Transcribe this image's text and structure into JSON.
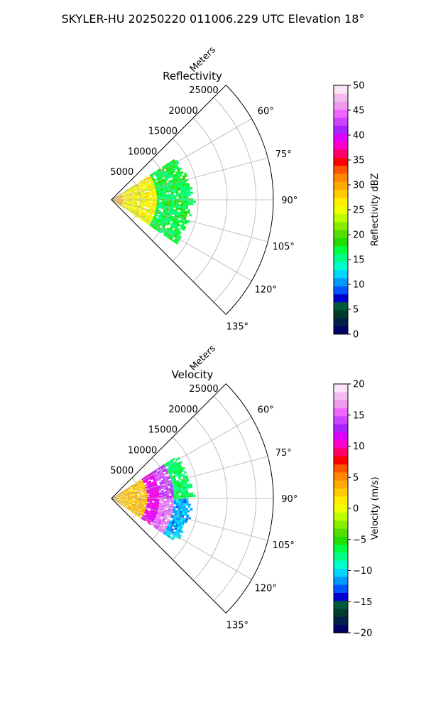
{
  "figure": {
    "title": "SKYLER-HU  20250220  011006.229 UTC Elevation 18°"
  },
  "chart_data": [
    {
      "type": "polar-sector",
      "title": "Reflectivity",
      "radial_label": "Meters",
      "radial_ticks": [
        5000,
        10000,
        15000,
        20000,
        25000
      ],
      "radial_tick_labels": [
        "5000",
        "10000",
        "15000",
        "20000",
        "25000"
      ],
      "rmax": 28000,
      "angle_range_deg": [
        45,
        135
      ],
      "angle_ticks_deg": [
        60,
        75,
        90,
        105,
        120,
        135
      ],
      "angle_tick_labels": [
        "60°",
        "75°",
        "90°",
        "105°",
        "120°",
        "135°"
      ],
      "grid": true,
      "data_extent": {
        "range_m": [
          0,
          14000
        ],
        "azimuth_deg": [
          57,
          123
        ]
      },
      "pattern": {
        "near_range_m": 7500,
        "near_value": 26,
        "far_value": 17,
        "spread": 4
      },
      "colorbar": {
        "label": "Reflectivity dBZ",
        "min": 0,
        "max": 50,
        "ticks": [
          0,
          5,
          10,
          15,
          20,
          25,
          30,
          35,
          40,
          45,
          50
        ],
        "tick_labels": [
          "0",
          "5",
          "10",
          "15",
          "20",
          "25",
          "30",
          "35",
          "40",
          "45",
          "50"
        ],
        "colors": [
          "#000066",
          "#00204a",
          "#003a2e",
          "#005a3a",
          "#0000cc",
          "#0055ff",
          "#0099ff",
          "#00d4ff",
          "#00ffcc",
          "#00ff88",
          "#00ff44",
          "#22dd00",
          "#55dd00",
          "#88ee00",
          "#bbff00",
          "#eeff00",
          "#ffee00",
          "#ffcc00",
          "#ffaa00",
          "#ff8800",
          "#ff5500",
          "#ff0000",
          "#ff0066",
          "#ff00cc",
          "#dd00ff",
          "#aa22ff",
          "#cc44ff",
          "#ee66ff",
          "#ee99ee",
          "#f4bbee",
          "#fbe6f8"
        ]
      }
    },
    {
      "type": "polar-sector",
      "title": "Velocity",
      "radial_label": "Meters",
      "radial_ticks": [
        5000,
        10000,
        15000,
        20000,
        25000
      ],
      "radial_tick_labels": [
        "5000",
        "10000",
        "15000",
        "20000",
        "25000"
      ],
      "rmax": 28000,
      "angle_range_deg": [
        45,
        135
      ],
      "angle_ticks_deg": [
        60,
        75,
        90,
        105,
        120,
        135
      ],
      "angle_tick_labels": [
        "60°",
        "75°",
        "90°",
        "105°",
        "120°",
        "135°"
      ],
      "grid": true,
      "data_extent": {
        "range_m": [
          0,
          14000
        ],
        "azimuth_deg": [
          57,
          123
        ]
      },
      "pattern": {
        "outer_left_value": -7,
        "outer_right_value": -11,
        "mid_left_value": 14,
        "mid_right_value": 16,
        "inner_value": 3,
        "spread": 3
      },
      "colorbar": {
        "label": "Velocity (m/s)",
        "min": -20,
        "max": 20,
        "ticks": [
          -20,
          -15,
          -10,
          -5,
          0,
          5,
          10,
          15,
          20
        ],
        "tick_labels": [
          "−20",
          "−15",
          "−10",
          "−5",
          "0",
          "5",
          "10",
          "15",
          "20"
        ],
        "colors": [
          "#000066",
          "#00204a",
          "#003a2e",
          "#005a3a",
          "#0000cc",
          "#0055ff",
          "#0099ff",
          "#00d4ff",
          "#00ffcc",
          "#00ff88",
          "#00ff44",
          "#22dd00",
          "#55dd00",
          "#88ee00",
          "#bbff00",
          "#eeff00",
          "#ffee00",
          "#ffcc00",
          "#ffaa00",
          "#ff8800",
          "#ff5500",
          "#ff0000",
          "#ff0066",
          "#ff00cc",
          "#dd00ff",
          "#aa22ff",
          "#cc44ff",
          "#ee66ff",
          "#ee99ee",
          "#f4bbee",
          "#fbe6f8"
        ]
      }
    }
  ]
}
